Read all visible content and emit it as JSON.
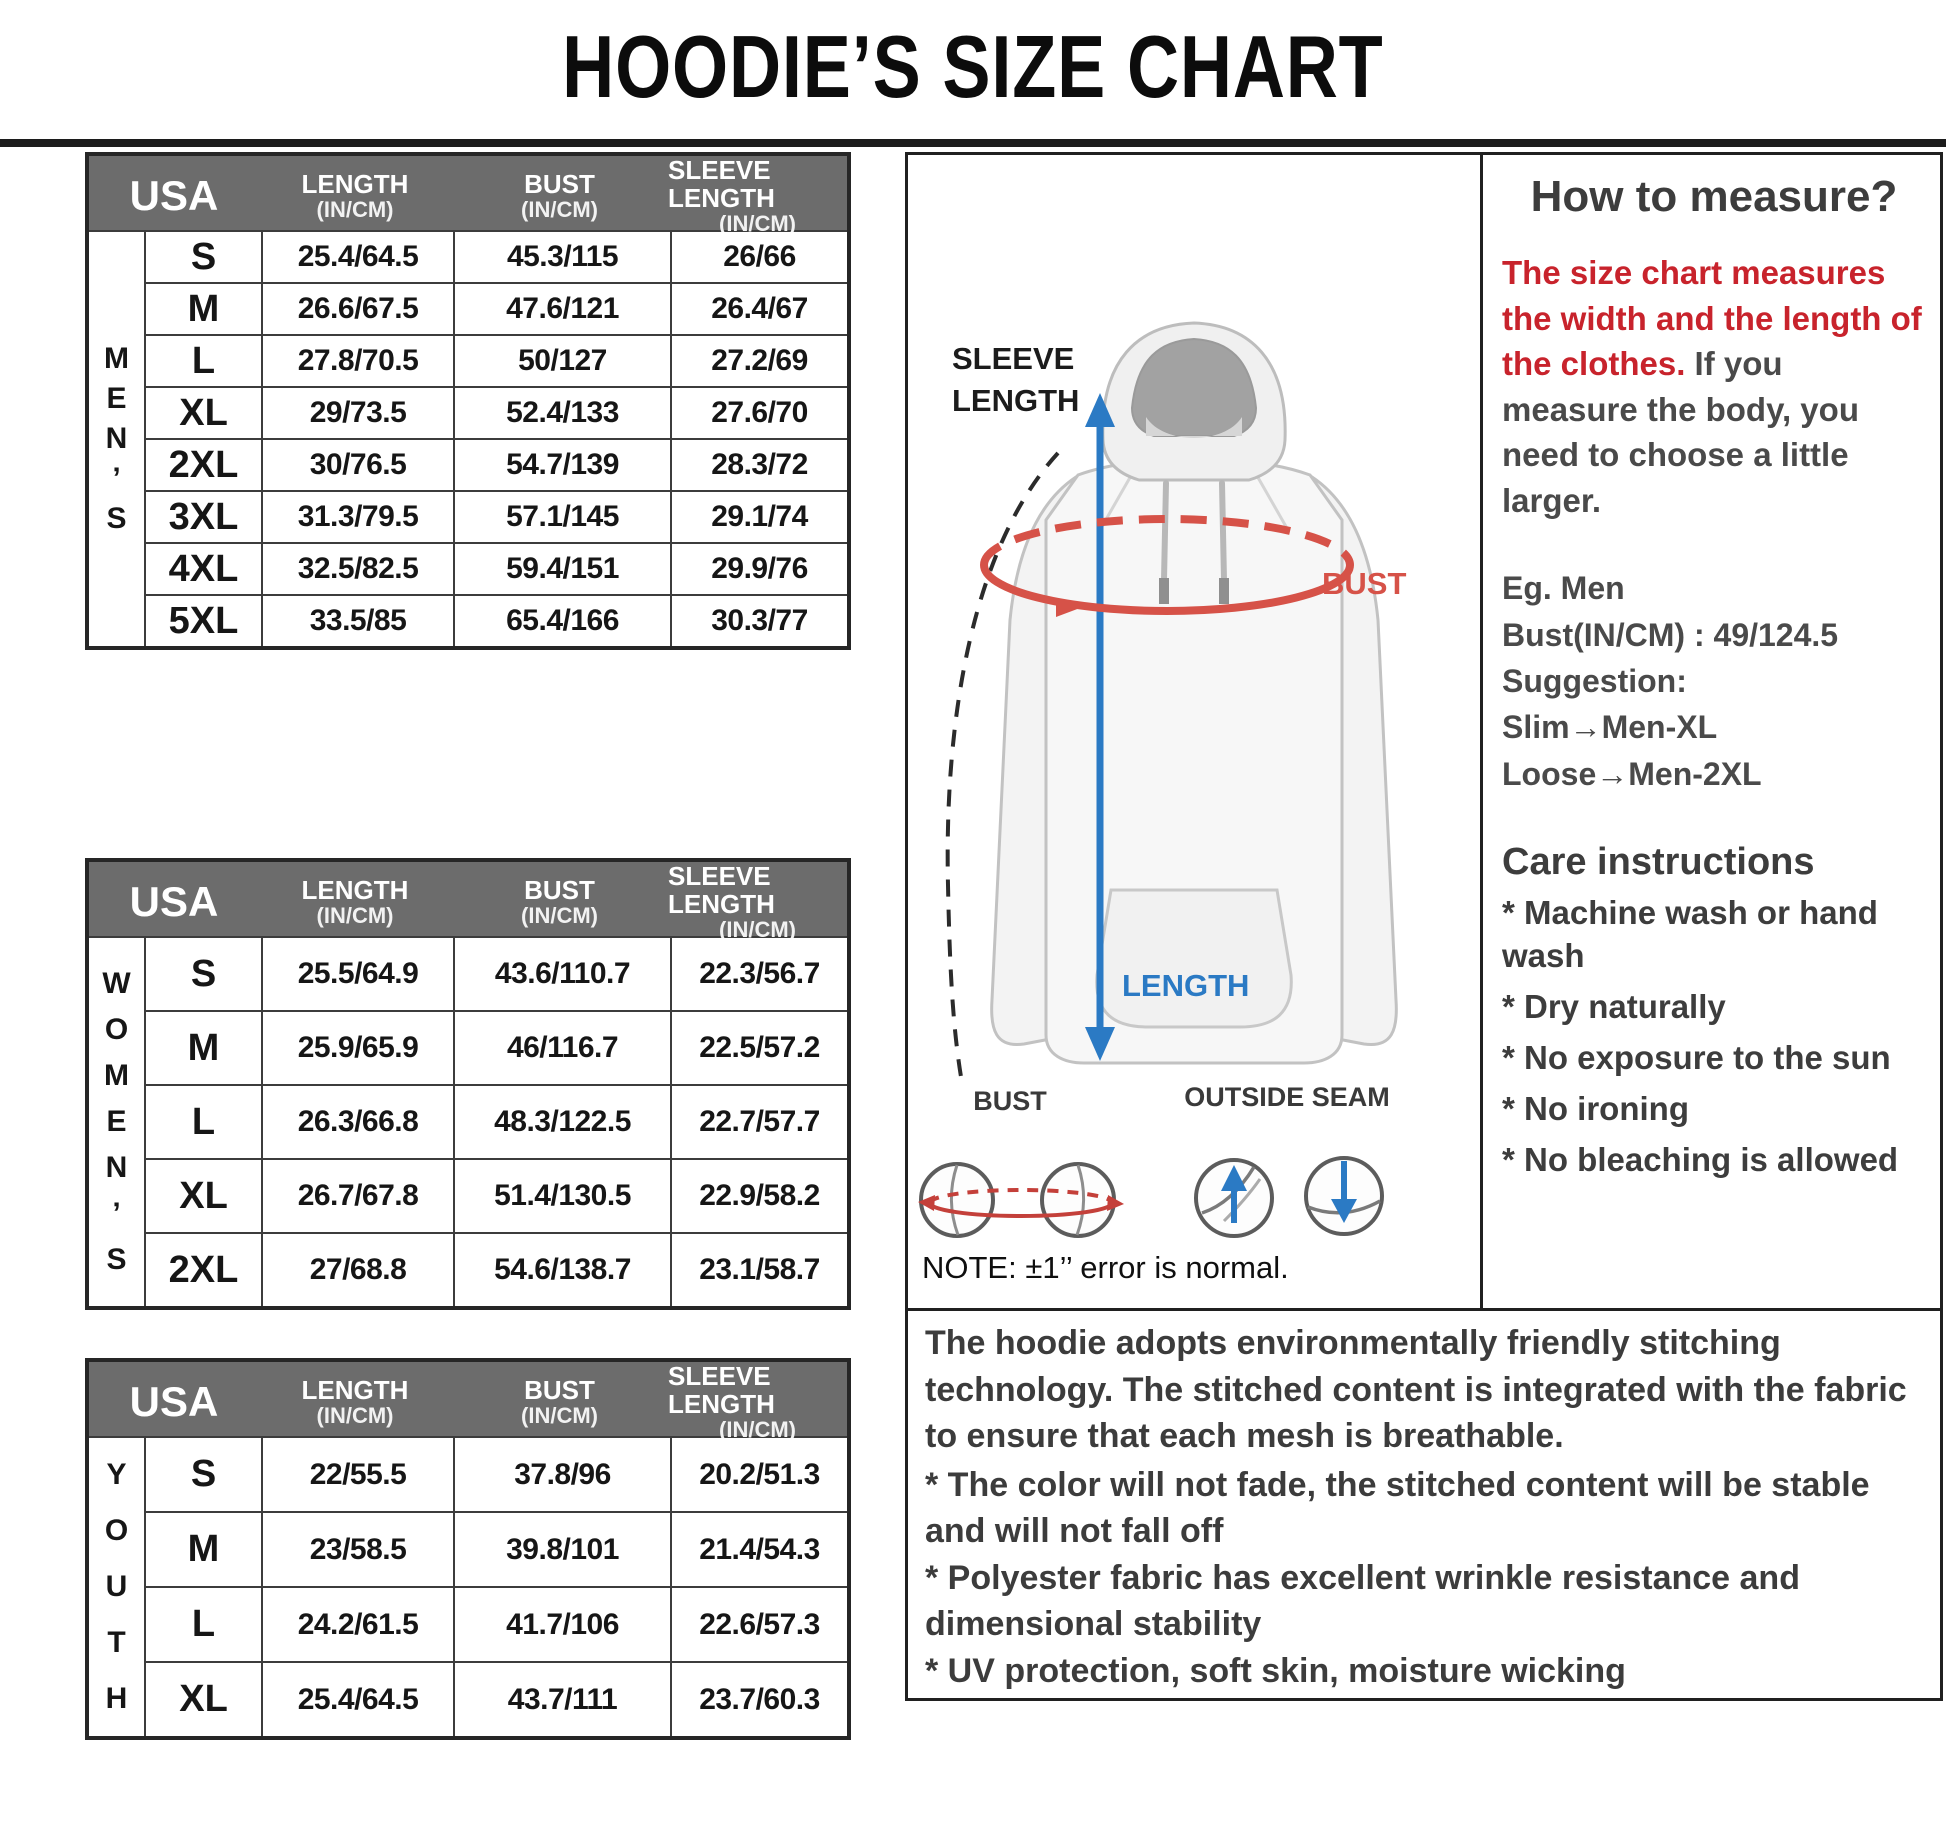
{
  "title": "HOODIE’S SIZE CHART",
  "tables": [
    {
      "group": "MEN’S",
      "group_vertical": "M\nE\nN\n’\nS",
      "headers": {
        "usa": "USA",
        "cols": [
          {
            "label": "LENGTH",
            "sub": "(IN/CM)"
          },
          {
            "label": "BUST",
            "sub": "(IN/CM)"
          },
          {
            "label": "SLEEVE LENGTH",
            "sub": "(IN/CM)"
          }
        ]
      },
      "rows": [
        [
          "S",
          "25.4/64.5",
          "45.3/115",
          "26/66"
        ],
        [
          "M",
          "26.6/67.5",
          "47.6/121",
          "26.4/67"
        ],
        [
          "L",
          "27.8/70.5",
          "50/127",
          "27.2/69"
        ],
        [
          "XL",
          "29/73.5",
          "52.4/133",
          "27.6/70"
        ],
        [
          "2XL",
          "30/76.5",
          "54.7/139",
          "28.3/72"
        ],
        [
          "3XL",
          "31.3/79.5",
          "57.1/145",
          "29.1/74"
        ],
        [
          "4XL",
          "32.5/82.5",
          "59.4/151",
          "29.9/76"
        ],
        [
          "5XL",
          "33.5/85",
          "65.4/166",
          "30.3/77"
        ]
      ]
    },
    {
      "group": "WOMEN’S",
      "group_vertical": "W\nO\nM\nE\nN\n’\nS",
      "headers": {
        "usa": "USA",
        "cols": [
          {
            "label": "LENGTH",
            "sub": "(IN/CM)"
          },
          {
            "label": "BUST",
            "sub": "(IN/CM)"
          },
          {
            "label": "SLEEVE LENGTH",
            "sub": "(IN/CM)"
          }
        ]
      },
      "rows": [
        [
          "S",
          "25.5/64.9",
          "43.6/110.7",
          "22.3/56.7"
        ],
        [
          "M",
          "25.9/65.9",
          "46/116.7",
          "22.5/57.2"
        ],
        [
          "L",
          "26.3/66.8",
          "48.3/122.5",
          "22.7/57.7"
        ],
        [
          "XL",
          "26.7/67.8",
          "51.4/130.5",
          "22.9/58.2"
        ],
        [
          "2XL",
          "27/68.8",
          "54.6/138.7",
          "23.1/58.7"
        ]
      ]
    },
    {
      "group": "YOUTH",
      "group_vertical": "Y\nO\nU\nT\nH",
      "headers": {
        "usa": "USA",
        "cols": [
          {
            "label": "LENGTH",
            "sub": "(IN/CM)"
          },
          {
            "label": "BUST",
            "sub": "(IN/CM)"
          },
          {
            "label": "SLEEVE LENGTH",
            "sub": "(IN/CM)"
          }
        ]
      },
      "rows": [
        [
          "S",
          "22/55.5",
          "37.8/96",
          "20.2/51.3"
        ],
        [
          "M",
          "23/58.5",
          "39.8/101",
          "21.4/54.3"
        ],
        [
          "L",
          "24.2/61.5",
          "41.7/106",
          "22.6/57.3"
        ],
        [
          "XL",
          "25.4/64.5",
          "43.7/111",
          "23.7/60.3"
        ]
      ]
    }
  ],
  "diagram": {
    "sleeve_length_label": "SLEEVE\nLENGTH",
    "bust_label": "BUST",
    "length_label": "LENGTH",
    "bust_icon_label": "BUST",
    "outside_seam_label": "OUTSIDE SEAM",
    "note": "NOTE:  ±1’’ error is normal."
  },
  "how_to_measure": {
    "heading": "How to measure?",
    "intro_red": "The size chart measures the width and the length of the clothes.",
    "intro_rest": "  If you measure the body, you need to choose a little larger.",
    "example_lines": [
      "Eg. Men",
      "Bust(IN/CM) : 49/124.5",
      "Suggestion:",
      "Slim→Men-XL",
      "Loose→Men-2XL"
    ],
    "care_heading": "Care instructions",
    "care_items": [
      "* Machine wash or hand wash",
      "* Dry naturally",
      "* No exposure to the sun",
      "* No ironing",
      "* No bleaching is allowed"
    ]
  },
  "description": {
    "paragraph": "The hoodie adopts environmentally friendly stitching technology. The stitched content is integrated with the fabric to ensure that each mesh is breathable.",
    "bullets": [
      "* The color will not fade, the stitched content will be stable and will not fall off",
      "* Polyester fabric has excellent wrinkle resistance and dimensional stability",
      "* UV protection, soft skin, moisture wicking"
    ]
  },
  "colors": {
    "accent_red": "#c8232c",
    "accent_blue": "#2b7ac4",
    "ellipse_red": "#d65248",
    "header_gray": "#6c6c6c"
  }
}
